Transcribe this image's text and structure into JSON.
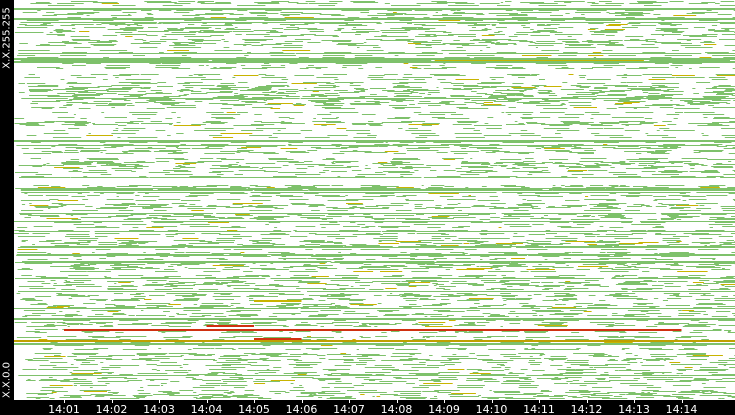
{
  "chart_data": {
    "type": "heatmap",
    "description_of_encoding": "",
    "y_axis": {
      "top_label": "X.X.255.255",
      "bottom_label": "X.X.0.0"
    },
    "x_axis": {
      "ticks": [
        "14:01",
        "14:02",
        "14:03",
        "14:04",
        "14:05",
        "14:06",
        "14:07",
        "14:08",
        "14:09",
        "14:10",
        "14:11",
        "14:12",
        "14:13",
        "14:14"
      ]
    },
    "colors": {
      "background": "#ffffff",
      "low": "#7ec16b",
      "medium": "#c8b400",
      "high": "#d03010"
    },
    "highlights": [
      {
        "level": "high",
        "y": 0.187,
        "x_start": "14:04",
        "x_end": "14:05"
      },
      {
        "level": "high",
        "y": 0.155,
        "x_start": "14:05",
        "x_end": "14:06"
      },
      {
        "level": "high",
        "y": 0.178,
        "x_start": "14:01",
        "x_end": "14:14"
      },
      {
        "level": "medium",
        "y": 0.25,
        "x_start": "14:05",
        "x_end": "14:06"
      }
    ]
  }
}
